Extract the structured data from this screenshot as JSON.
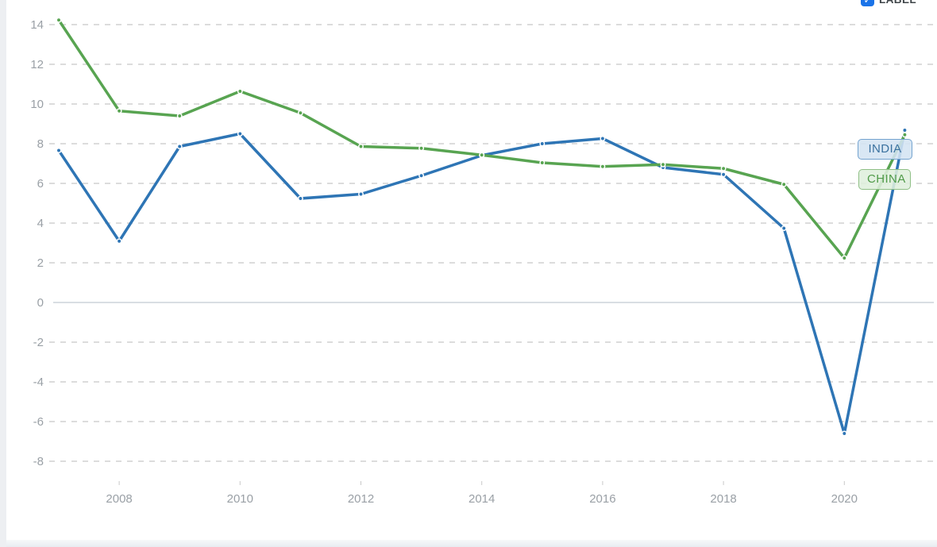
{
  "page": {
    "label_toggle": {
      "text": "LABEL",
      "checkbox_color": "#1a73e8",
      "check_glyph": "✓"
    }
  },
  "chart_data": {
    "type": "line",
    "title": "",
    "xlabel": "",
    "ylabel": "",
    "x": [
      2007,
      2008,
      2009,
      2010,
      2011,
      2012,
      2013,
      2014,
      2015,
      2016,
      2017,
      2018,
      2019,
      2020,
      2021
    ],
    "x_ticks": [
      2008,
      2010,
      2012,
      2014,
      2016,
      2018,
      2020
    ],
    "y_ticks": [
      14,
      12,
      10,
      8,
      6,
      4,
      2,
      0,
      -2,
      -4,
      -6,
      -8
    ],
    "ylim": [
      -8.8,
      14.8
    ],
    "grid": "horizontal-dashed, solid zero line",
    "legend_position": "end-of-line labels, right side",
    "colors": {
      "gridline": "#dcdcdc",
      "zero_line": "#d9dee3",
      "axis_text": "#9aa0a6",
      "tick_mark": "#c9c9c9"
    },
    "series": [
      {
        "name": "INDIA",
        "color": "#2e75b5",
        "values": [
          7.66,
          3.09,
          7.86,
          8.5,
          5.24,
          5.46,
          6.39,
          7.41,
          8.0,
          8.26,
          6.8,
          6.45,
          3.74,
          -6.6,
          8.68
        ]
      },
      {
        "name": "CHINA",
        "color": "#58a451",
        "values": [
          14.23,
          9.65,
          9.4,
          10.64,
          9.55,
          7.86,
          7.77,
          7.43,
          7.04,
          6.85,
          6.95,
          6.75,
          5.95,
          2.24,
          8.45
        ]
      }
    ]
  }
}
